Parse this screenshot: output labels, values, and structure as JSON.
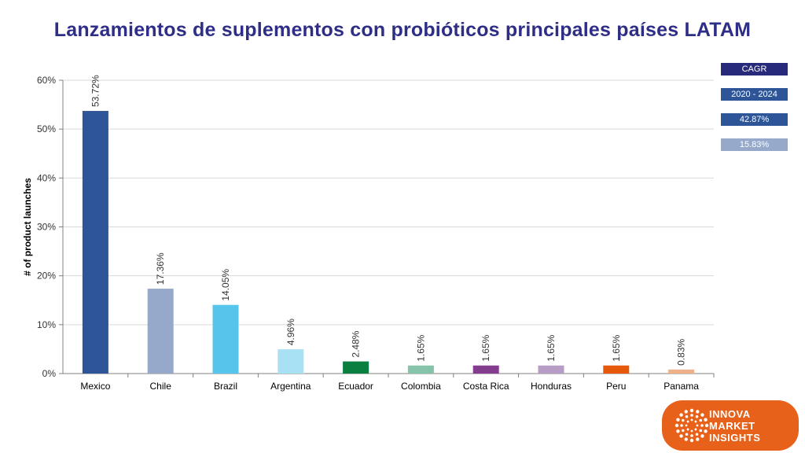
{
  "title": "Lanzamientos de suplementos con probióticos principales países LATAM",
  "cagr_panel": {
    "header": "CAGR",
    "period": "2020 - 2024",
    "values": [
      {
        "label": "42.87%",
        "color": "#2e5597"
      },
      {
        "label": "15.83%",
        "color": "#96a9cb"
      }
    ],
    "header_color": "#27297a",
    "period_color": "#2e5597"
  },
  "logo": {
    "lines": [
      "INNOVA",
      "MARKET",
      "INSIGHTS"
    ],
    "color": "#e8611a"
  },
  "chart_data": {
    "type": "bar",
    "title": "Lanzamientos de suplementos con probióticos principales países LATAM",
    "ylabel": "# of product launches",
    "xlabel": "",
    "ylim": [
      0,
      60
    ],
    "yticks": [
      0,
      10,
      20,
      30,
      40,
      50,
      60
    ],
    "ytick_labels": [
      "0%",
      "10%",
      "20%",
      "30%",
      "40%",
      "50%",
      "60%"
    ],
    "grid": true,
    "categories": [
      "Mexico",
      "Chile",
      "Brazil",
      "Argentina",
      "Ecuador",
      "Colombia",
      "Costa Rica",
      "Honduras",
      "Peru",
      "Panama"
    ],
    "values": [
      53.72,
      17.36,
      14.05,
      4.96,
      2.48,
      1.65,
      1.65,
      1.65,
      1.65,
      0.83
    ],
    "data_labels": [
      "53.72%",
      "17.36%",
      "14.05%",
      "4.96%",
      "2.48%",
      "1.65%",
      "1.65%",
      "1.65%",
      "1.65%",
      "0.83%"
    ],
    "colors": [
      "#2e5597",
      "#96a9cb",
      "#56c5eb",
      "#a8e0f4",
      "#0a7f3f",
      "#86c4a9",
      "#833c8e",
      "#b79dc6",
      "#e6580c",
      "#eeb18a"
    ]
  }
}
